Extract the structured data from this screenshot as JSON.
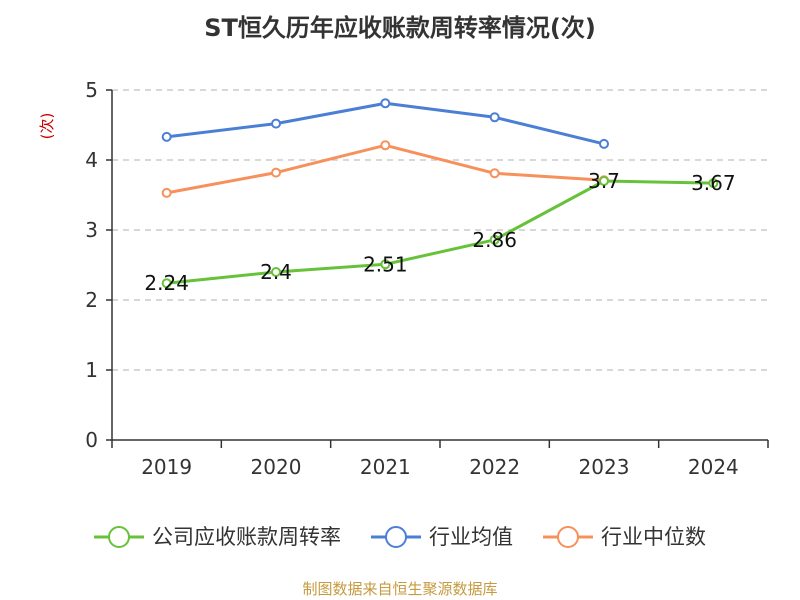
{
  "chart_data": {
    "type": "line",
    "title": "ST恒久历年应收账款周转率情况(次)",
    "ylabel": "(次)",
    "xlabel": "",
    "categories": [
      "2019",
      "2020",
      "2021",
      "2022",
      "2023",
      "2024"
    ],
    "ylim": [
      0,
      5
    ],
    "yticks": [
      0,
      1,
      2,
      3,
      4,
      5
    ],
    "grid": true,
    "legend_position": "bottom",
    "series": [
      {
        "name": "公司应收账款周转率",
        "color": "#67c23a",
        "values": [
          2.24,
          2.4,
          2.51,
          2.86,
          3.7,
          3.67
        ],
        "labels": [
          "2.24",
          "2.4",
          "2.51",
          "2.86",
          "3.7",
          "3.67"
        ]
      },
      {
        "name": "行业均值",
        "color": "#4b7fd6",
        "values": [
          4.33,
          4.52,
          4.81,
          4.61,
          4.23,
          null
        ]
      },
      {
        "name": "行业中位数",
        "color": "#f7905a",
        "values": [
          3.53,
          3.82,
          4.21,
          3.81,
          3.71,
          null
        ]
      }
    ]
  },
  "source": "制图数据来自恒生聚源数据库"
}
